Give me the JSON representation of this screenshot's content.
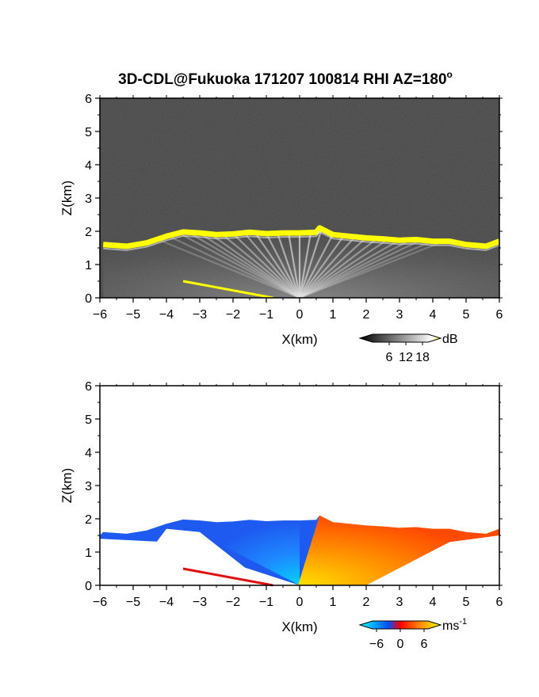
{
  "title": "3D-CDL@Fukuoka 171207 100814 RHI AZ=180",
  "title_degree": "o",
  "chart_data": [
    {
      "type": "heatmap",
      "variable": "backscatter intensity",
      "xlabel": "X(km)",
      "ylabel": "Z(km)",
      "xlim": [
        -6,
        6
      ],
      "ylim": [
        0,
        6
      ],
      "xticks": [
        "-6",
        "-5",
        "-4",
        "-3",
        "-2",
        "-1",
        "0",
        "1",
        "2",
        "3",
        "4",
        "5",
        "6"
      ],
      "yticks": [
        "0",
        "1",
        "2",
        "3",
        "4",
        "5",
        "6"
      ],
      "colorbar": {
        "unit": "dB",
        "ticks": [
          "6",
          "12",
          "18"
        ],
        "range": [
          0,
          20
        ],
        "colors": [
          "#000000",
          "#ffffff",
          "#ffff00"
        ]
      },
      "background_color": "#2b2b2b",
      "boundary_layer_top": {
        "x": [
          -5.9,
          -5.2,
          -4.6,
          -4.0,
          -3.5,
          -3.0,
          -2.5,
          -2.0,
          -1.5,
          -1.0,
          -0.5,
          0.0,
          0.5,
          0.6,
          1.0,
          1.5,
          2.0,
          2.5,
          3.0,
          3.5,
          4.0,
          4.5,
          5.0,
          5.6,
          6.0
        ],
        "z": [
          1.6,
          1.55,
          1.65,
          1.85,
          1.98,
          1.95,
          1.9,
          1.92,
          1.97,
          1.93,
          1.95,
          1.95,
          1.97,
          2.1,
          1.9,
          1.85,
          1.8,
          1.77,
          1.73,
          1.75,
          1.7,
          1.7,
          1.6,
          1.55,
          1.7
        ]
      },
      "low_streak": {
        "x": [
          -3.5,
          -0.8
        ],
        "z": [
          0.5,
          0.0
        ]
      }
    },
    {
      "type": "heatmap",
      "variable": "radial velocity",
      "xlabel": "X(km)",
      "ylabel": "Z(km)",
      "xlim": [
        -6,
        6
      ],
      "ylim": [
        0,
        6
      ],
      "xticks": [
        "-6",
        "-5",
        "-4",
        "-3",
        "-2",
        "-1",
        "0",
        "1",
        "2",
        "3",
        "4",
        "5",
        "6"
      ],
      "yticks": [
        "0",
        "1",
        "2",
        "3",
        "4",
        "5",
        "6"
      ],
      "colorbar": {
        "unit": "ms",
        "unit_exponent": "-1",
        "ticks": [
          "-6",
          "0",
          "6"
        ],
        "range": [
          -7,
          7
        ],
        "colors": [
          "#00ffff",
          "#0050ff",
          "#ff0000",
          "#ff8c00",
          "#ffff00"
        ]
      },
      "background_color": "#ffffff",
      "approaching_side": {
        "x": [
          -6,
          0
        ],
        "velocity": "negative",
        "color": "#1e5af0"
      },
      "receding_side": {
        "x": [
          0,
          6
        ],
        "velocity": "positive",
        "color": "#ff5000"
      }
    }
  ]
}
